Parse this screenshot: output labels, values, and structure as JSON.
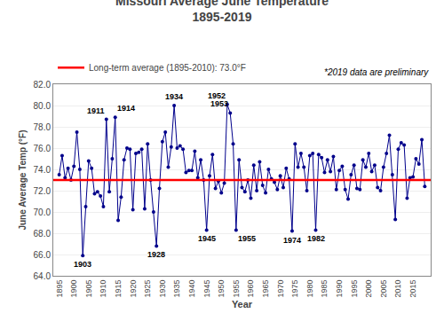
{
  "chart_data": {
    "type": "line",
    "title": "Missouri Average June Temperature",
    "subtitle": "1895-2019",
    "xlabel": "Year",
    "ylabel": "June Average Temp (°F)",
    "note": "*2019 data are preliminary",
    "x": [
      1895,
      1896,
      1897,
      1898,
      1899,
      1900,
      1901,
      1902,
      1903,
      1904,
      1905,
      1906,
      1907,
      1908,
      1909,
      1910,
      1911,
      1912,
      1913,
      1914,
      1915,
      1916,
      1917,
      1918,
      1919,
      1920,
      1921,
      1922,
      1923,
      1924,
      1925,
      1926,
      1927,
      1928,
      1929,
      1930,
      1931,
      1932,
      1933,
      1934,
      1935,
      1936,
      1937,
      1938,
      1939,
      1940,
      1941,
      1942,
      1943,
      1944,
      1945,
      1946,
      1947,
      1948,
      1949,
      1950,
      1951,
      1952,
      1953,
      1954,
      1955,
      1956,
      1957,
      1958,
      1959,
      1960,
      1961,
      1962,
      1963,
      1964,
      1965,
      1966,
      1967,
      1968,
      1969,
      1970,
      1971,
      1972,
      1973,
      1974,
      1975,
      1976,
      1977,
      1978,
      1979,
      1980,
      1981,
      1982,
      1983,
      1984,
      1985,
      1986,
      1987,
      1988,
      1989,
      1990,
      1991,
      1992,
      1993,
      1994,
      1995,
      1996,
      1997,
      1998,
      1999,
      2000,
      2001,
      2002,
      2003,
      2004,
      2005,
      2006,
      2007,
      2008,
      2009,
      2010,
      2011,
      2012,
      2013,
      2014,
      2015,
      2016,
      2017,
      2018,
      2019
    ],
    "series": [
      {
        "color": "#00008B",
        "marker": "circle",
        "values": [
          73.5,
          75.3,
          73.2,
          74.1,
          73.0,
          74.3,
          77.5,
          74.0,
          65.9,
          70.5,
          74.8,
          74.1,
          71.7,
          71.9,
          71.5,
          70.5,
          78.7,
          71.9,
          75.0,
          78.9,
          69.2,
          71.4,
          74.9,
          76.0,
          75.9,
          70.2,
          75.5,
          75.6,
          75.9,
          70.3,
          76.4,
          73.0,
          70.0,
          66.8,
          72.2,
          76.6,
          77.5,
          74.2,
          76.1,
          80.0,
          76.0,
          76.2,
          75.9,
          73.7,
          73.9,
          73.9,
          75.7,
          73.2,
          74.9,
          73.0,
          68.3,
          73.4,
          75.4,
          72.2,
          72.9,
          71.8,
          72.7,
          80.1,
          79.3,
          76.4,
          68.3,
          74.9,
          72.3,
          71.9,
          73.0,
          71.3,
          74.4,
          72.0,
          74.7,
          72.5,
          71.8,
          74.0,
          73.1,
          72.8,
          72.1,
          73.4,
          72.3,
          74.1,
          73.1,
          68.2,
          76.4,
          74.2,
          75.5,
          74.2,
          72.0,
          75.3,
          75.5,
          68.3,
          75.4,
          75.1,
          73.7,
          74.9,
          73.8,
          75.2,
          72.1,
          73.9,
          74.3,
          72.1,
          71.2,
          73.5,
          74.4,
          72.2,
          72.1,
          74.9,
          74.2,
          75.5,
          73.8,
          74.4,
          72.3,
          72.0,
          74.2,
          75.5,
          77.2,
          73.5,
          69.3,
          75.9,
          76.5,
          76.3,
          71.3,
          73.2,
          73.3,
          75.0,
          74.5,
          76.8,
          72.4
        ]
      }
    ],
    "average": {
      "name": "Long-term average (1895-2010): 73.0°F",
      "value": 73.0,
      "color": "#FF0000"
    },
    "annotations": [
      {
        "text": "1903",
        "x": 1903,
        "y": 65.9
      },
      {
        "text": "1911",
        "x": 1911,
        "y": 78.7
      },
      {
        "text": "1914",
        "x": 1914,
        "y": 78.9
      },
      {
        "text": "1928",
        "x": 1928,
        "y": 66.8
      },
      {
        "text": "1934",
        "x": 1934,
        "y": 80.0
      },
      {
        "text": "1945",
        "x": 1945,
        "y": 68.3
      },
      {
        "text": "1952",
        "x": 1952,
        "y": 80.1
      },
      {
        "text": "1953",
        "x": 1953,
        "y": 79.3
      },
      {
        "text": "1955",
        "x": 1955,
        "y": 68.3
      },
      {
        "text": "1974",
        "x": 1974,
        "y": 68.2
      },
      {
        "text": "1982",
        "x": 1982,
        "y": 68.3
      }
    ],
    "xlim": [
      1893,
      2021
    ],
    "xticks": [
      1895,
      1900,
      1905,
      1910,
      1915,
      1920,
      1925,
      1930,
      1935,
      1940,
      1945,
      1950,
      1955,
      1960,
      1965,
      1970,
      1975,
      1980,
      1985,
      1990,
      1995,
      2000,
      2005,
      2010,
      2015
    ],
    "ylim": [
      64.0,
      82.0
    ],
    "yticks": [
      {
        "value": 64.0,
        "label": "64.0"
      },
      {
        "value": 66.0,
        "label": "66.0"
      },
      {
        "value": 68.0,
        "label": "68.0"
      },
      {
        "value": 70.0,
        "label": "70.0"
      },
      {
        "value": 72.0,
        "label": "72.0"
      },
      {
        "value": 74.0,
        "label": "74.0"
      },
      {
        "value": 76.0,
        "label": "76.0"
      },
      {
        "value": 78.0,
        "label": "78.0"
      },
      {
        "value": 80.0,
        "label": "80.0"
      },
      {
        "value": 82.0,
        "label": "82.0"
      }
    ],
    "grid": "y"
  }
}
